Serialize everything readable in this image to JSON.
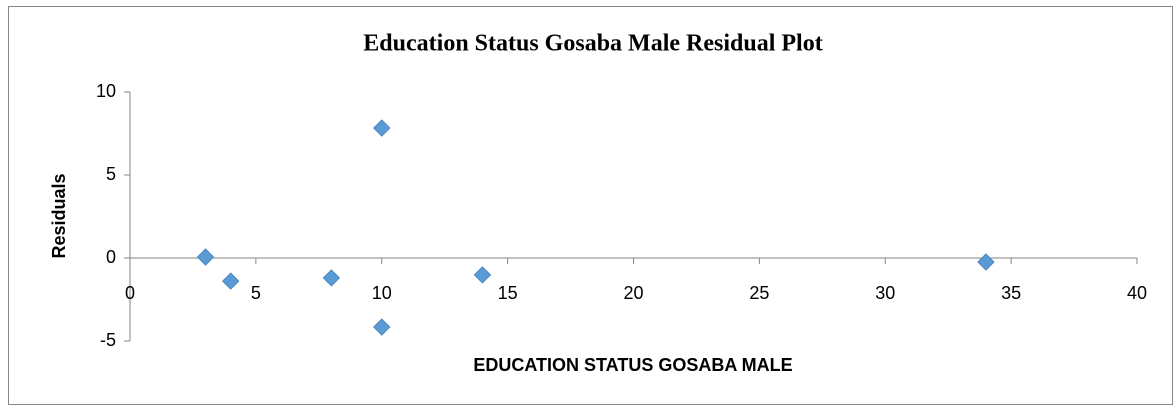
{
  "chart_data": {
    "type": "scatter",
    "title": "Education Status Gosaba Male  Residual Plot",
    "x_label": "EDUCATION STATUS GOSABA MALE",
    "y_label": "Residuals",
    "series": [
      {
        "name": "Residuals",
        "color": "#5b9bd5",
        "x": [
          3,
          4,
          8,
          10,
          10,
          14,
          34
        ],
        "values": [
          0.06,
          -1.39,
          -1.2,
          7.83,
          -4.16,
          -1.02,
          -0.24
        ]
      }
    ],
    "xlim": [
      0,
      40
    ],
    "xticks": [
      0,
      5,
      10,
      15,
      20,
      25,
      30,
      35,
      40
    ],
    "ylim": [
      -5,
      10
    ],
    "yticks": [
      -5,
      0,
      5,
      10
    ],
    "grid": false
  }
}
